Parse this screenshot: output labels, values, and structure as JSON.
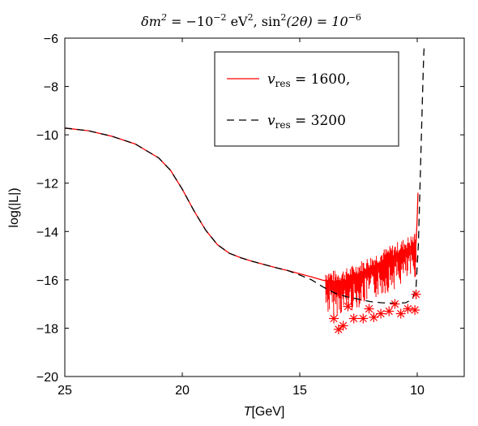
{
  "chart_data": {
    "type": "line",
    "title": "δm² = −10⁻²  eV², sin²(2θ) = 10⁻⁶",
    "xlabel": "T[GeV]",
    "ylabel": "log(|L|)",
    "xlim": [
      25,
      8
    ],
    "x_reversed": true,
    "ylim": [
      -20,
      -6
    ],
    "xticks": [
      25,
      20,
      15,
      10
    ],
    "yticks": [
      -20,
      -18,
      -16,
      -14,
      -12,
      -10,
      -8,
      -6
    ],
    "xtick_labels": [
      "25",
      "20",
      "15",
      "10"
    ],
    "ytick_labels": [
      "−20",
      "−18",
      "−16",
      "−14",
      "−12",
      "−10",
      "−8",
      "−6"
    ],
    "grid": false,
    "legend_position": "top-right",
    "legend_box": true,
    "series": [
      {
        "name": "v_res = 1600,",
        "color": "#ff0000",
        "style": "solid",
        "x": [
          25,
          24,
          23,
          22,
          21,
          20.5,
          20,
          19.5,
          19,
          18.5,
          18,
          17.5,
          17,
          16.5,
          16,
          15.5,
          15,
          14.5,
          14,
          13.8,
          13.6,
          13.4,
          13.2,
          13,
          12.8,
          12.6,
          12.4,
          12.2,
          12,
          11.8,
          11.6,
          11.4,
          11.2,
          11,
          10.8,
          10.6,
          10.4,
          10.2,
          10.05,
          10.0,
          9.97
        ],
        "y": [
          -9.72,
          -9.83,
          -10.06,
          -10.38,
          -10.96,
          -11.47,
          -12.25,
          -13.15,
          -13.95,
          -14.55,
          -14.9,
          -15.09,
          -15.24,
          -15.37,
          -15.5,
          -15.62,
          -15.75,
          -15.88,
          -16.02,
          -16.05,
          -16.1,
          -16.1,
          -16.05,
          -16.0,
          -15.9,
          -15.8,
          -15.7,
          -15.6,
          -15.5,
          -15.4,
          -15.3,
          -15.2,
          -15.1,
          -15.0,
          -14.9,
          -14.8,
          -14.7,
          -14.6,
          -14.5,
          -13.4,
          -12.4
        ]
      },
      {
        "name": "v_res = 3200",
        "color": "#000000",
        "style": "dashed",
        "x": [
          25,
          24,
          23,
          22,
          21,
          20.5,
          20,
          19.5,
          19,
          18.5,
          18,
          17.5,
          17,
          16.5,
          16,
          15.5,
          15,
          14.5,
          14,
          13.5,
          13,
          12.5,
          12,
          11.5,
          11,
          10.5,
          10.2,
          10.05,
          9.95,
          9.85,
          9.75,
          9.72,
          9.7
        ],
        "y": [
          -9.72,
          -9.83,
          -10.06,
          -10.38,
          -10.96,
          -11.47,
          -12.25,
          -13.15,
          -13.95,
          -14.55,
          -14.9,
          -15.09,
          -15.24,
          -15.37,
          -15.5,
          -15.62,
          -15.8,
          -16.0,
          -16.3,
          -16.55,
          -16.7,
          -16.8,
          -16.9,
          -16.95,
          -16.97,
          -16.95,
          -16.8,
          -16.3,
          -14.5,
          -11.0,
          -7.5,
          -6.6,
          -6.3
        ]
      }
    ],
    "red_markers": {
      "marker": "asterisk",
      "points": [
        [
          13.55,
          -17.6
        ],
        [
          13.35,
          -18.05
        ],
        [
          13.15,
          -17.9
        ],
        [
          12.95,
          -17.1
        ],
        [
          12.7,
          -17.6
        ],
        [
          12.3,
          -17.6
        ],
        [
          12.05,
          -17.2
        ],
        [
          11.85,
          -17.55
        ],
        [
          11.55,
          -17.4
        ],
        [
          11.2,
          -17.3
        ],
        [
          10.95,
          -17.0
        ],
        [
          10.7,
          -17.4
        ],
        [
          10.4,
          -17.2
        ],
        [
          10.1,
          -17.25
        ],
        [
          10.05,
          -16.6
        ]
      ]
    },
    "legend": {
      "entries": [
        "v_res = 1600,",
        "v_res = 3200"
      ]
    }
  },
  "labels": {
    "title_main": "δm",
    "title_sup1": "2",
    "title_eq": " = −10",
    "title_sup2": "−2",
    "title_unit": "  eV",
    "title_sup3": "2",
    "title_mid": ", sin",
    "title_sup4": "2",
    "title_arg": "(2θ) = 10",
    "title_sup5": "−6",
    "xlabel_T": "T",
    "xlabel_rest": "[GeV]",
    "ylabel": "log(|L|)",
    "legend1_v": "v",
    "legend1_sub": "res",
    "legend1_rest": " = 1600,",
    "legend2_v": "v",
    "legend2_sub": "res",
    "legend2_rest": " = 3200"
  }
}
